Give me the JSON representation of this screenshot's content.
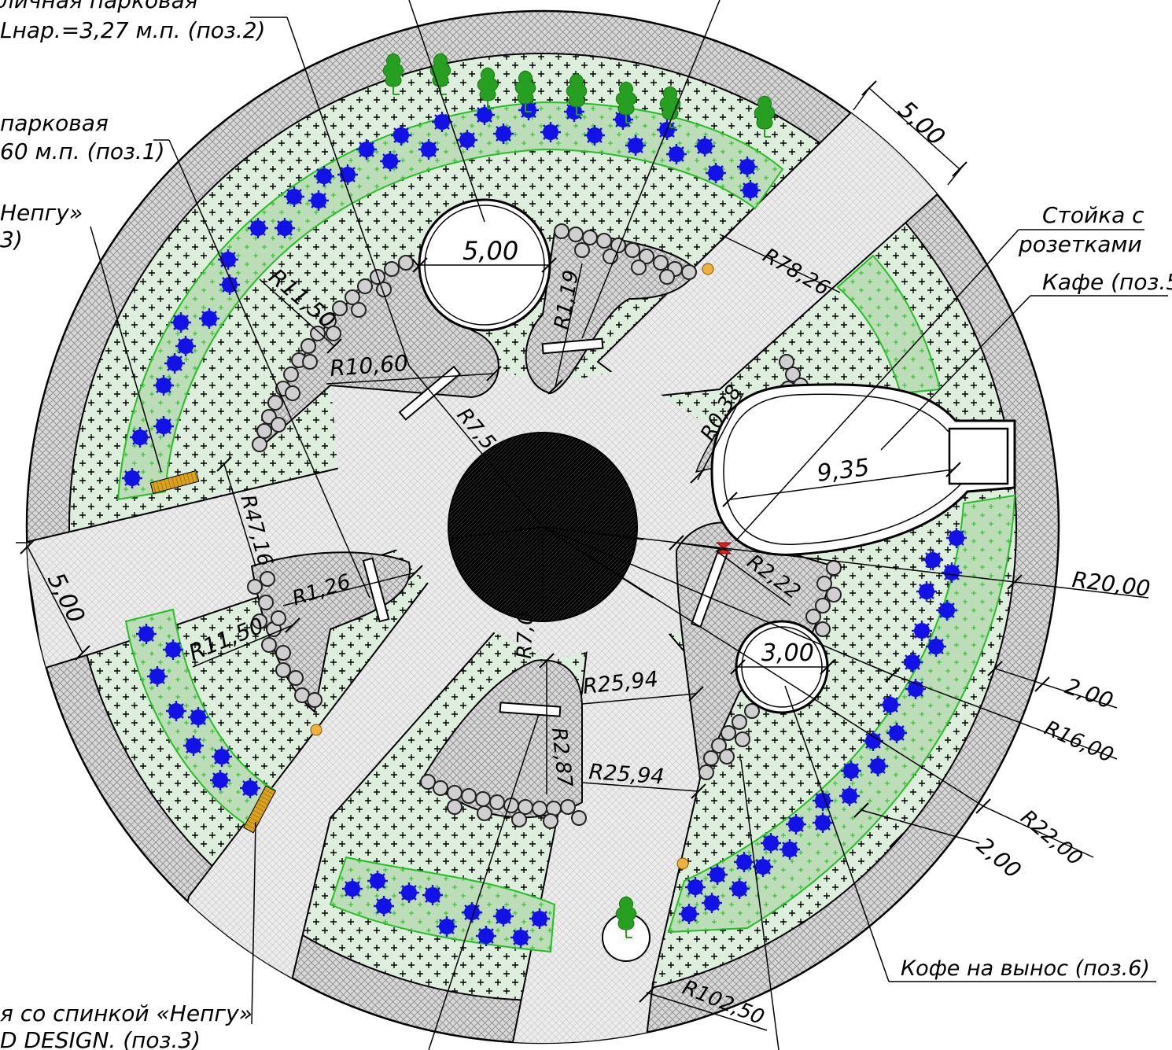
{
  "colors": {
    "outer_ring": "#d7d7d7",
    "hatch_light": "#ececec",
    "lawn": "#deeedd",
    "flowerbed": "#bddcb8",
    "flowerbed_edge": "#22c022",
    "flower": "#1212e6",
    "tree": "#27a021",
    "bench": "#d9a11c",
    "lamp": "#f0b040",
    "center": "#000000",
    "kiosk_red": "#e02020"
  },
  "labels": {
    "lamp_park_a": "личная парковая",
    "lamp_park_a_len": "Lнар.=3,27 м.п. (поз.2)",
    "lamp_park_b": "парковая",
    "lamp_park_b_len": "60 м.п. (поз.1)",
    "bench_a": "Непгу»",
    "bench_a_pos": "3)",
    "bench_b": "я со спинкой «Непгу»",
    "bench_b_pos": "D DESIGN. (поз.3)",
    "socket_stand_1": "Стойка с",
    "socket_stand_2": "розетками",
    "cafe": "Кафе (поз.5",
    "coffee": "Кофе на вынос (поз.6)"
  },
  "dimensions": {
    "d_5_00_circle": "5,00",
    "d_3_00_circle": "3,00",
    "d_cafe": "9,35",
    "w_5_00_top": "5,00",
    "w_5_00_left": "5,00",
    "w_2_00_a": "2,00",
    "w_2_00_b": "2,00",
    "r_11_50_a": "R11,50",
    "r_11_50_b": "R11,50",
    "r_10_60": "R10,60",
    "r_7_5": "R7,5",
    "r_7_0": "R7,0",
    "r_1_19": "R1,19",
    "r_1_26": "R1,26",
    "r_47_16": "R47,16",
    "r_78_26": "R78,26",
    "r_0_38": "R0,38",
    "r_2_22": "R2,22",
    "r_2_87": "R2,87",
    "r_25_94_a": "R25,94",
    "r_25_94_b": "R25,94",
    "r_20_00": "R20,00",
    "r_16_00": "R16,00",
    "r_22_00": "R22,00",
    "r_102_50": "R102,50"
  }
}
